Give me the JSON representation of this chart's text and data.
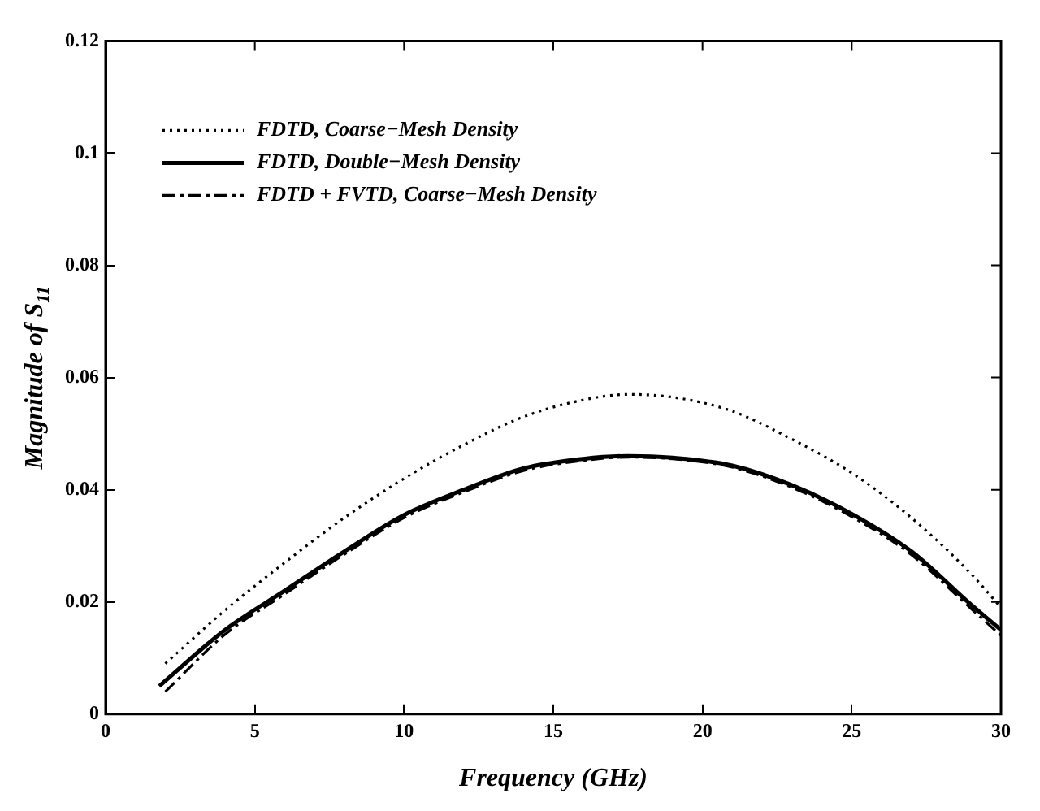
{
  "chart_data": {
    "type": "line",
    "xlabel": "Frequency (GHz)",
    "ylabel": "Magnitude of S$_{11}$",
    "xlim": [
      0,
      30
    ],
    "xticks": [
      0,
      5,
      10,
      15,
      20,
      25,
      30
    ],
    "ylim": [
      0,
      0.12
    ],
    "yticks": [
      0,
      0.02,
      0.04,
      0.06,
      0.08,
      0.1,
      0.12
    ],
    "grid": false,
    "legend": "top left",
    "marker": "none",
    "series": [
      {
        "name": "FDTD, Coarse−Mesh Density",
        "color": "#000000",
        "line_style": "dotted",
        "x": [
          2,
          4,
          6,
          8,
          10,
          12,
          14,
          16,
          17.5,
          19,
          21,
          23,
          25,
          27,
          29,
          30
        ],
        "values": [
          0.009,
          0.0185,
          0.027,
          0.035,
          0.042,
          0.048,
          0.053,
          0.056,
          0.057,
          0.0565,
          0.054,
          0.049,
          0.043,
          0.035,
          0.025,
          0.019
        ]
      },
      {
        "name": "FDTD, Double−Mesh Density",
        "color": "#000000",
        "line_style": "solid",
        "x": [
          1.8,
          4,
          6,
          8,
          10,
          12,
          14,
          16,
          17.5,
          19,
          21,
          23,
          25,
          27,
          29,
          30
        ],
        "values": [
          0.005,
          0.015,
          0.022,
          0.029,
          0.0355,
          0.04,
          0.0438,
          0.0455,
          0.046,
          0.0457,
          0.0443,
          0.0408,
          0.0357,
          0.029,
          0.0195,
          0.015
        ]
      },
      {
        "name": "FDTD + FVTD, Coarse−Mesh Density",
        "color": "#000000",
        "line_style": "dashdot",
        "x": [
          2,
          4,
          6,
          8,
          10,
          12,
          14,
          16,
          17.5,
          19,
          21,
          23,
          25,
          27,
          29,
          30
        ],
        "values": [
          0.004,
          0.0142,
          0.0214,
          0.0285,
          0.035,
          0.0396,
          0.0434,
          0.0452,
          0.0458,
          0.0455,
          0.044,
          0.0404,
          0.0352,
          0.0284,
          0.0188,
          0.014
        ]
      }
    ]
  }
}
